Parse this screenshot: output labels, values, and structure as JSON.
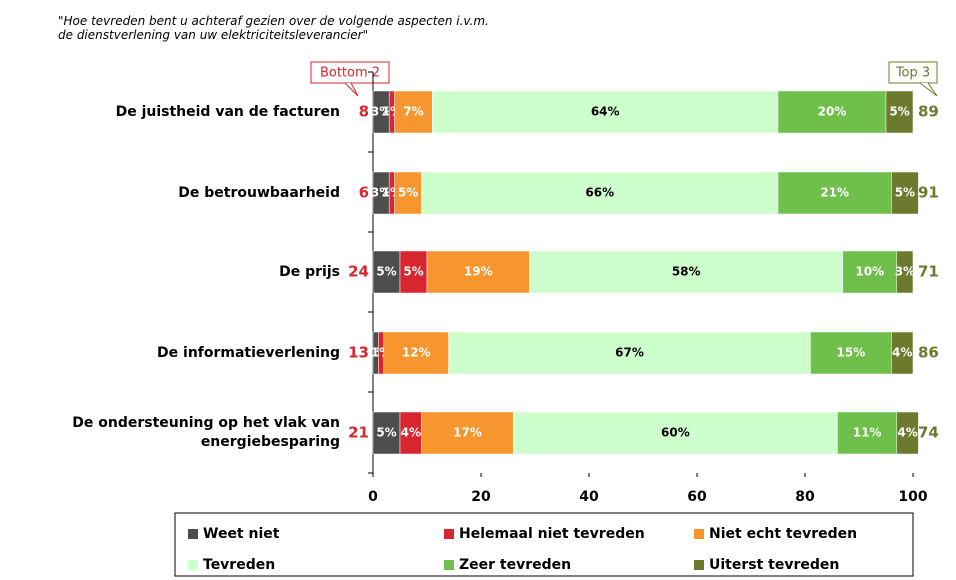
{
  "chart_data": {
    "type": "stacked-bar-horizontal",
    "title": [
      "\"Hoe tevreden bent u achteraf gezien over de volgende aspecten i.v.m.",
      "de dienstverlening van uw elektriciteitsleverancier\""
    ],
    "categories": [
      "De juistheid van de facturen",
      "De betrouwbaarheid",
      "De prijs",
      "De informatieverlening",
      "De ondersteuning op het vlak van energiebesparing"
    ],
    "series": [
      {
        "name": "Weet niet",
        "color": "#4d4d4d",
        "label_color": "#ffffff",
        "values": [
          3,
          3,
          5,
          1,
          5
        ],
        "value_labels": [
          "3%",
          "3%",
          "5%",
          "1%",
          "5%"
        ]
      },
      {
        "name": "Helemaal niet tevreden",
        "color": "#d7262e",
        "label_color": "#ffffff",
        "values": [
          1,
          1,
          5,
          1,
          4
        ],
        "value_labels": [
          "1%",
          "1%",
          "5%",
          "1%",
          "4%"
        ]
      },
      {
        "name": "Niet echt tevreden",
        "color": "#f7962f",
        "label_color": "#ffffff",
        "values": [
          7,
          5,
          19,
          12,
          17
        ],
        "value_labels": [
          "7%",
          "5%",
          "19%",
          "12%",
          "17%"
        ]
      },
      {
        "name": "Tevreden",
        "color": "#ccffcc",
        "label_color": "#000000",
        "values": [
          64,
          66,
          58,
          67,
          60
        ],
        "value_labels": [
          "64%",
          "66%",
          "58%",
          "67%",
          "60%"
        ]
      },
      {
        "name": "Zeer tevreden",
        "color": "#6fc04a",
        "label_color": "#ffffff",
        "values": [
          20,
          21,
          10,
          15,
          11
        ],
        "value_labels": [
          "20%",
          "21%",
          "10%",
          "15%",
          "11%"
        ]
      },
      {
        "name": "Uiterst tevreden",
        "color": "#6b7a2c",
        "label_color": "#ffffff",
        "values": [
          5,
          5,
          3,
          4,
          4
        ],
        "value_labels": [
          "5%",
          "5%",
          "3%",
          "4%",
          "4%"
        ]
      }
    ],
    "bottom2": {
      "label": "Bottom 2",
      "color": "#d7262e",
      "values": [
        8,
        6,
        24,
        13,
        21
      ]
    },
    "top3": {
      "label": "Top 3",
      "color": "#6b7a2c",
      "values": [
        89,
        91,
        71,
        86,
        74
      ]
    },
    "xlim": [
      0,
      100
    ],
    "xticks": [
      0,
      20,
      40,
      60,
      80,
      100
    ]
  }
}
